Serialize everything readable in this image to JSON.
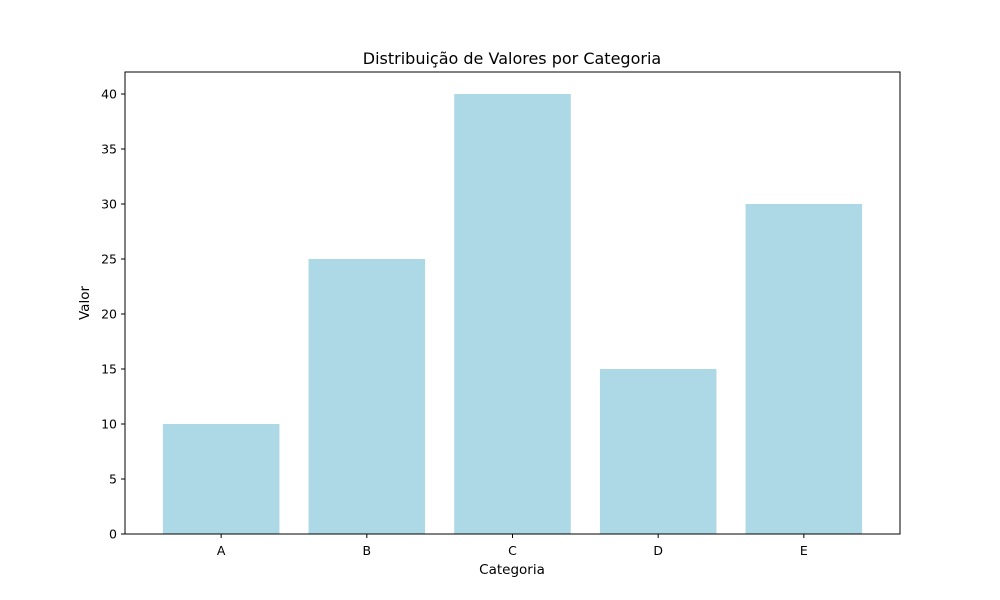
{
  "chart_data": {
    "type": "bar",
    "title": "Distribuição de Valores por Categoria",
    "xlabel": "Categoria",
    "ylabel": "Valor",
    "categories": [
      "A",
      "B",
      "C",
      "D",
      "E"
    ],
    "values": [
      10,
      25,
      40,
      15,
      30
    ],
    "ylim": [
      0,
      42
    ],
    "yticks": [
      0,
      5,
      10,
      15,
      20,
      25,
      30,
      35,
      40
    ],
    "grid": false,
    "bar_color": "#add8e6"
  }
}
